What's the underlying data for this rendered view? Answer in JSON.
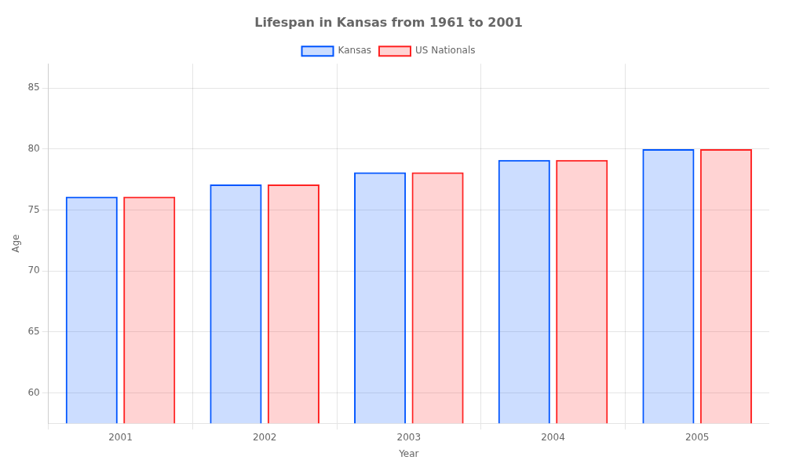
{
  "chart_data": {
    "type": "bar",
    "title": "Lifespan in Kansas from 1961 to 2001",
    "x_label": "Year",
    "y_label": "Age",
    "categories": [
      "2001",
      "2002",
      "2003",
      "2004",
      "2005"
    ],
    "series": [
      {
        "name": "Kansas",
        "color": "#0055ff",
        "values": [
          76.1,
          77.1,
          78.1,
          79.1,
          80.0
        ]
      },
      {
        "name": "US Nationals",
        "color": "#ff2222",
        "values": [
          76.1,
          77.1,
          78.1,
          79.1,
          80.0
        ]
      }
    ],
    "ylim": [
      57.5,
      87
    ],
    "yticks": [
      60,
      65,
      70,
      75,
      80,
      85
    ],
    "grid": true,
    "legend": "top"
  }
}
